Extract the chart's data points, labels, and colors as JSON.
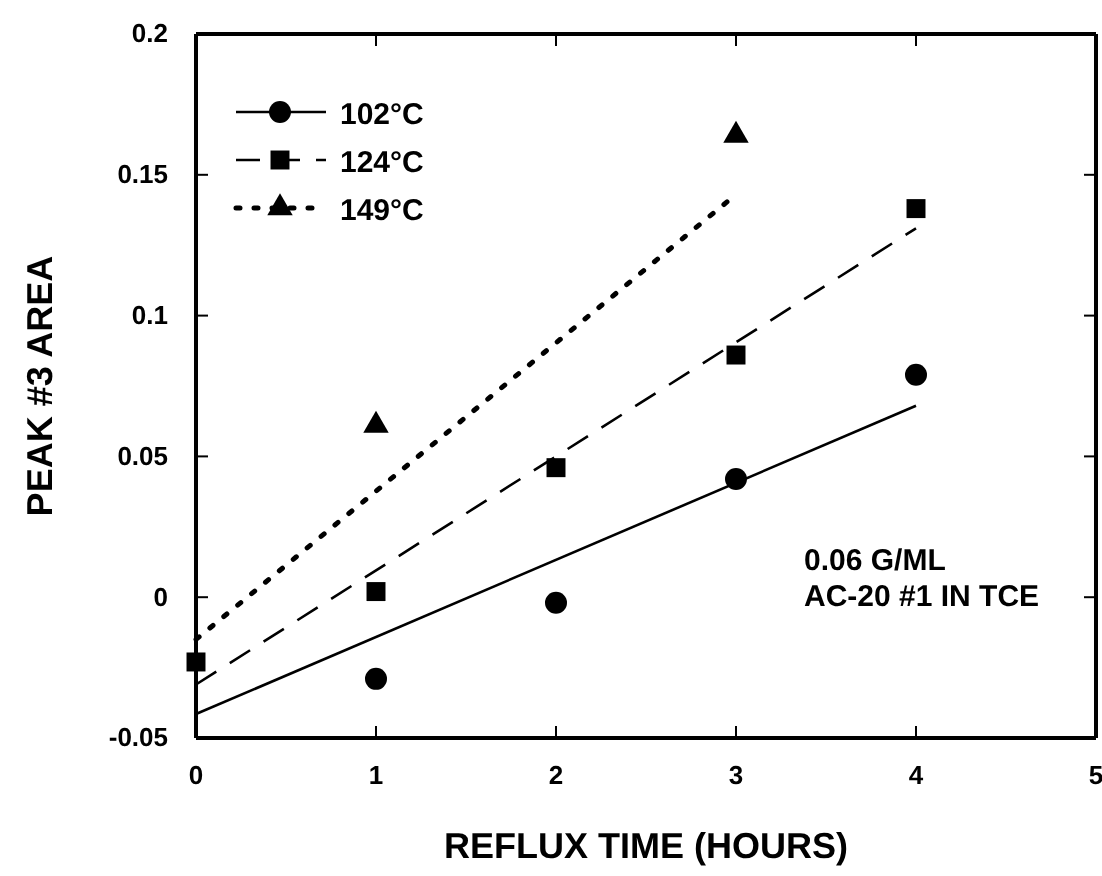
{
  "chart_data": {
    "type": "scatter",
    "xlabel": "REFLUX TIME (HOURS)",
    "ylabel": "PEAK #3 AREA",
    "xlim": [
      0,
      5
    ],
    "xticks": [
      0,
      1,
      2,
      3,
      4,
      5
    ],
    "ylim": [
      -0.05,
      0.2
    ],
    "yticks": [
      -0.05,
      0,
      0.05,
      0.1,
      0.15,
      0.2
    ],
    "grid": false,
    "legend": "top left",
    "annotations": [
      "0.06 G/ML",
      "AC-20 #1 IN TCE"
    ],
    "series": [
      {
        "name": "102°C",
        "marker": "circle",
        "color": "#000000",
        "x": [
          1,
          2,
          3,
          4
        ],
        "values": [
          -0.029,
          -0.002,
          0.042,
          0.079
        ]
      },
      {
        "name": "124°C",
        "marker": "square",
        "color": "#000000",
        "x": [
          0,
          1,
          2,
          3,
          4
        ],
        "values": [
          -0.023,
          0.002,
          0.046,
          0.086,
          0.138
        ]
      },
      {
        "name": "149°C",
        "marker": "triangle",
        "color": "#000000",
        "x": [
          1,
          3
        ],
        "values": [
          0.061,
          0.164
        ]
      },
      {
        "type": "line",
        "line_style": "solid",
        "color": "#000000",
        "x": [
          0,
          4
        ],
        "values": [
          -0.0415,
          0.068
        ]
      },
      {
        "type": "line",
        "line_style": "dashed",
        "color": "#000000",
        "x": [
          0,
          4
        ],
        "values": [
          -0.031,
          0.131
        ]
      },
      {
        "type": "line",
        "line_style": "dotted",
        "color": "#000000",
        "x": [
          0,
          3
        ],
        "values": [
          -0.015,
          0.143
        ]
      }
    ]
  }
}
